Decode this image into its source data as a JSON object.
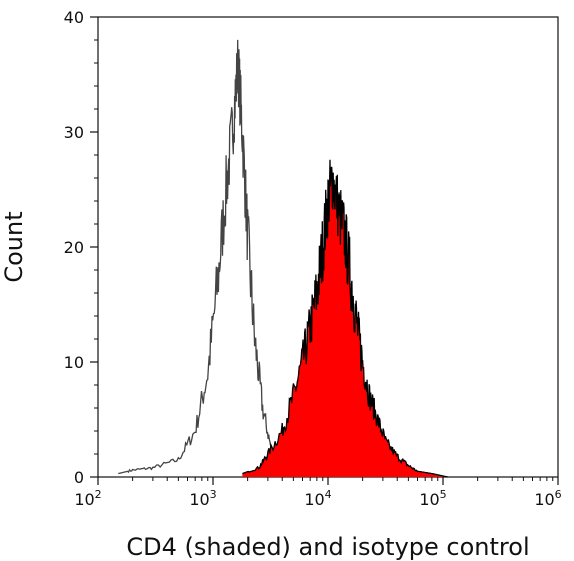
{
  "chart_data": {
    "type": "area",
    "xlabel": "CD4 (shaded) and isotype control",
    "ylabel": "Count",
    "x_scale": "log",
    "xlim": [
      100,
      1000000
    ],
    "ylim": [
      0,
      40
    ],
    "grid": false,
    "x_ticks": [
      {
        "value": 100,
        "base": "10",
        "exp": "2"
      },
      {
        "value": 1000,
        "base": "10",
        "exp": "3"
      },
      {
        "value": 10000,
        "base": "10",
        "exp": "4"
      },
      {
        "value": 100000,
        "base": "10",
        "exp": "5"
      },
      {
        "value": 1000000,
        "base": "10",
        "exp": "6"
      }
    ],
    "y_ticks": [
      {
        "value": 0,
        "label": "0"
      },
      {
        "value": 10,
        "label": "10"
      },
      {
        "value": 20,
        "label": "20"
      },
      {
        "value": 30,
        "label": "30"
      },
      {
        "value": 40,
        "label": "40"
      }
    ],
    "series": [
      {
        "style": "outline",
        "color": "#444444",
        "x": [
          150,
          200,
          300,
          500,
          700,
          900,
          1100,
          1300,
          1500,
          1650,
          1800,
          2000,
          2300,
          2700,
          3200,
          4000,
          5000,
          6000
        ],
        "y": [
          0.3,
          0.6,
          0.8,
          1.5,
          4,
          9,
          17,
          25,
          31,
          36,
          30,
          21,
          12,
          6,
          2.5,
          1,
          0.3,
          0
        ]
      },
      {
        "style": "filled",
        "color": "#ff0000",
        "outline_color": "#000000",
        "x": [
          1800,
          2500,
          3000,
          4000,
          5000,
          6000,
          7000,
          8000,
          9000,
          10000,
          11000,
          12500,
          14000,
          16000,
          18000,
          20000,
          23000,
          27000,
          32000,
          40000,
          50000,
          60000,
          80000,
          110000
        ],
        "y": [
          0.3,
          0.8,
          2,
          4,
          7,
          10,
          13,
          16,
          20,
          24,
          26,
          23,
          21,
          17,
          13,
          10,
          7,
          5,
          3,
          1.8,
          1,
          0.5,
          0.3,
          0
        ]
      }
    ]
  }
}
